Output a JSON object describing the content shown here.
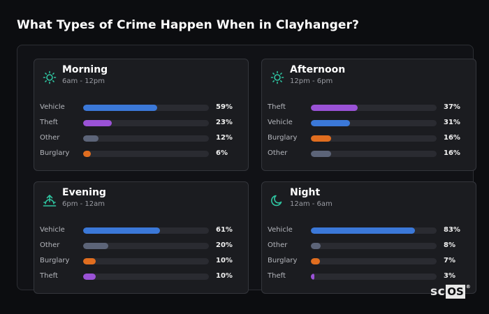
{
  "title": "What Types of Crime Happen When in Clayhanger?",
  "colors": {
    "vehicle": "#3b78d8",
    "theft": "#9a52d6",
    "other": "#5c6478",
    "burglary": "#e06d1f",
    "icon": "#2fc4a0"
  },
  "cards": [
    {
      "name": "Morning",
      "hours": "6am - 12pm",
      "icon": "sun-icon",
      "rows": [
        {
          "label": "Vehicle",
          "pct_text": "59%",
          "value": 59,
          "type": "vehicle"
        },
        {
          "label": "Theft",
          "pct_text": "23%",
          "value": 23,
          "type": "theft"
        },
        {
          "label": "Other",
          "pct_text": "12%",
          "value": 12,
          "type": "other"
        },
        {
          "label": "Burglary",
          "pct_text": "6%",
          "value": 6,
          "type": "burglary"
        }
      ]
    },
    {
      "name": "Afternoon",
      "hours": "12pm - 6pm",
      "icon": "sun-icon",
      "rows": [
        {
          "label": "Theft",
          "pct_text": "37%",
          "value": 37,
          "type": "theft"
        },
        {
          "label": "Vehicle",
          "pct_text": "31%",
          "value": 31,
          "type": "vehicle"
        },
        {
          "label": "Burglary",
          "pct_text": "16%",
          "value": 16,
          "type": "burglary"
        },
        {
          "label": "Other",
          "pct_text": "16%",
          "value": 16,
          "type": "other"
        }
      ]
    },
    {
      "name": "Evening",
      "hours": "6pm - 12am",
      "icon": "sunset-icon",
      "rows": [
        {
          "label": "Vehicle",
          "pct_text": "61%",
          "value": 61,
          "type": "vehicle"
        },
        {
          "label": "Other",
          "pct_text": "20%",
          "value": 20,
          "type": "other"
        },
        {
          "label": "Burglary",
          "pct_text": "10%",
          "value": 10,
          "type": "burglary"
        },
        {
          "label": "Theft",
          "pct_text": "10%",
          "value": 10,
          "type": "theft"
        }
      ]
    },
    {
      "name": "Night",
      "hours": "12am - 6am",
      "icon": "moon-icon",
      "rows": [
        {
          "label": "Vehicle",
          "pct_text": "83%",
          "value": 83,
          "type": "vehicle"
        },
        {
          "label": "Other",
          "pct_text": "8%",
          "value": 8,
          "type": "other"
        },
        {
          "label": "Burglary",
          "pct_text": "7%",
          "value": 7,
          "type": "burglary"
        },
        {
          "label": "Theft",
          "pct_text": "3%",
          "value": 3,
          "type": "theft"
        }
      ]
    }
  ],
  "logo": {
    "part1": "sc",
    "part2": "OS",
    "mark": "®"
  }
}
